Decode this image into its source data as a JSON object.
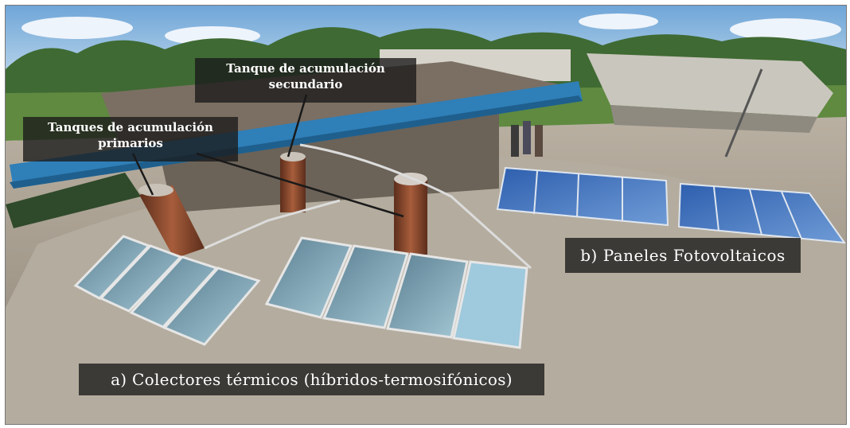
{
  "labels": {
    "primary_tanks": [
      "Tanques de acumulación",
      "primarios"
    ],
    "secondary_tank": [
      "Tanque de acumulación",
      "secundario"
    ],
    "pv_panels": "b) Paneles Fotovoltaicos",
    "thermal_collectors": "a)  Colectores térmicos (híbridos-termosifónicos)"
  },
  "colors": {
    "label_bg": "#191919",
    "label_text": "#ffffff",
    "roof_blue": "#2f7fb8",
    "tank_copper": "#8a4a2e",
    "pv_blue": "#3e6fb5"
  }
}
